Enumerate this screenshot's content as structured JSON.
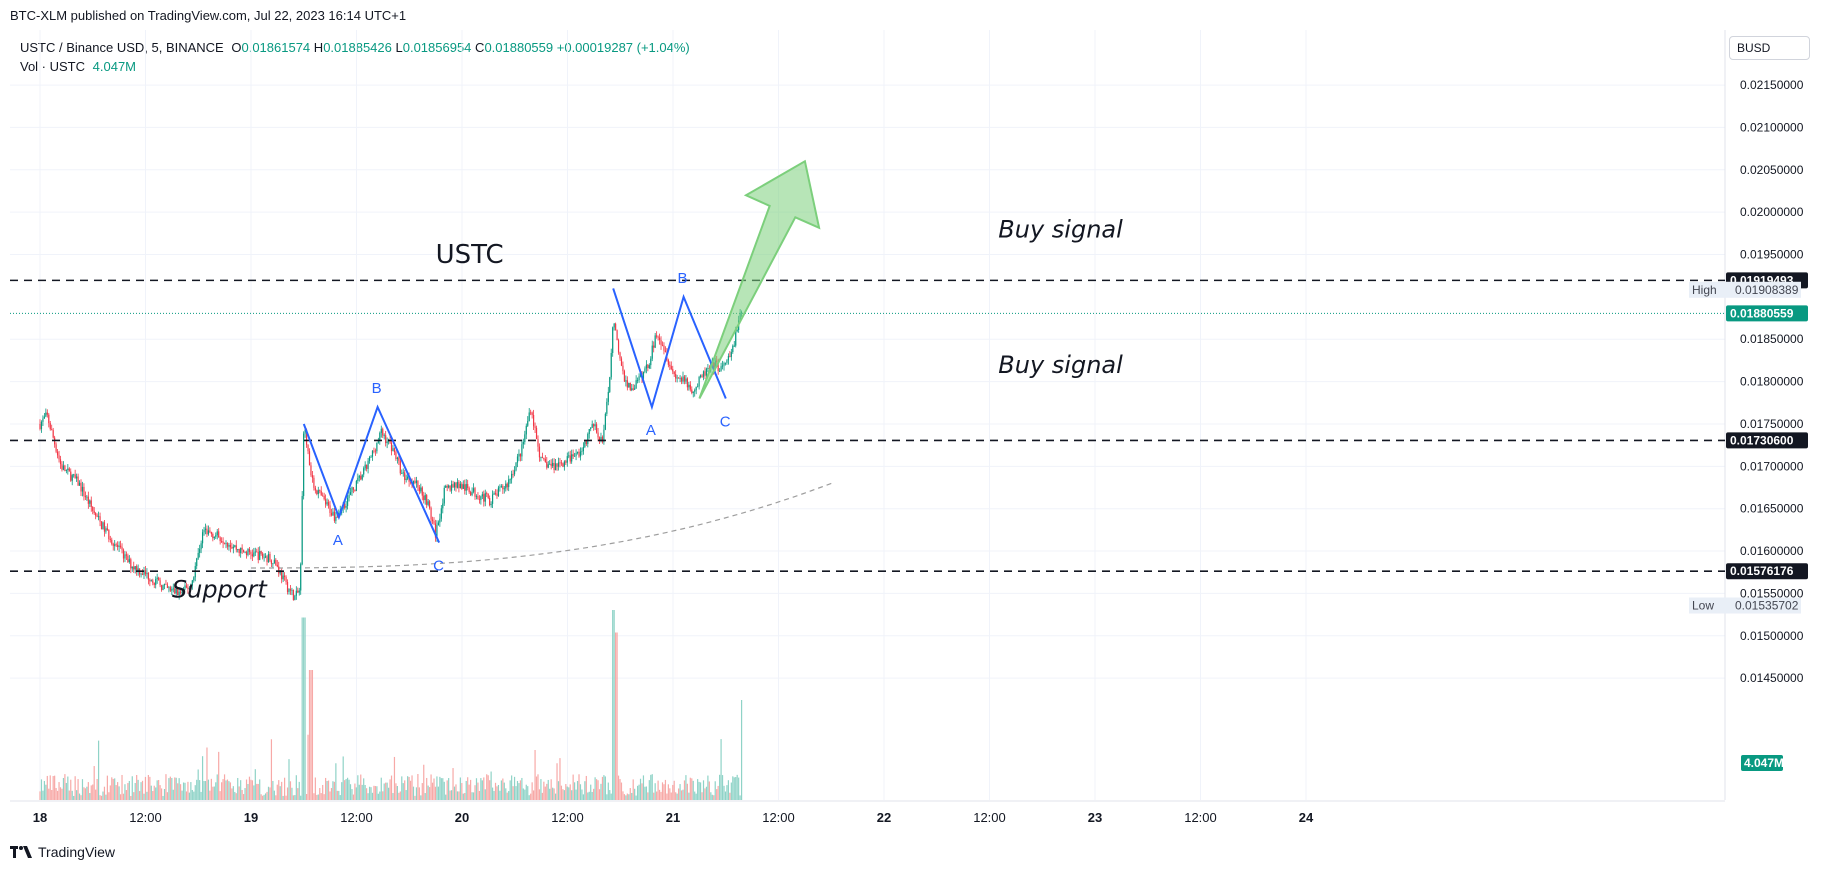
{
  "header": {
    "published": "BTC-XLM published on TradingView.com, Jul 22, 2023 16:14 UTC+1"
  },
  "legend": {
    "symbol": "USTC / Binance USD, 5, BINANCE",
    "o_label": "O",
    "o": "0.01861574",
    "h_label": "H",
    "h": "0.01885426",
    "l_label": "L",
    "l": "0.01856954",
    "c_label": "C",
    "c": "0.01880559",
    "change": "+0.00019287 (+1.04%)",
    "vol_label": "Vol · USTC",
    "vol": "4.047M"
  },
  "currency": "BUSD",
  "footer": {
    "brand": "TradingView"
  },
  "colors": {
    "up": "#089981",
    "down": "#f23645",
    "pattern": "#2962ff",
    "arrow": "#7ccf7c"
  },
  "chart_data": {
    "type": "candlestick",
    "x_ticks": [
      "18",
      "12:00",
      "19",
      "12:00",
      "20",
      "12:00",
      "21",
      "12:00",
      "22",
      "12:00",
      "23",
      "12:00",
      "24"
    ],
    "y_ticks": [
      "0.02150000",
      "0.02100000",
      "0.02050000",
      "0.02000000",
      "0.01950000",
      "0.01850000",
      "0.01800000",
      "0.01750000",
      "0.01700000",
      "0.01650000",
      "0.01600000",
      "0.01550000",
      "0.01500000",
      "0.01450000"
    ],
    "y_values": [
      0.0215,
      0.021,
      0.0205,
      0.02,
      0.0195,
      0.0185,
      0.018,
      0.0175,
      0.017,
      0.0165,
      0.016,
      0.0155,
      0.015,
      0.0145
    ],
    "ylim": [
      0.01436,
      0.02215
    ],
    "price_path": [
      [
        0,
        0.0175
      ],
      [
        0.4,
        0.0176
      ],
      [
        1.2,
        0.017
      ],
      [
        2.2,
        0.0168
      ],
      [
        3.2,
        0.0164
      ],
      [
        4.2,
        0.0161
      ],
      [
        5.1,
        0.01585
      ],
      [
        6.2,
        0.0157
      ],
      [
        7.2,
        0.01555
      ],
      [
        8.0,
        0.0155
      ],
      [
        8.6,
        0.0156
      ],
      [
        9.3,
        0.01625
      ],
      [
        10.4,
        0.01615
      ],
      [
        11.4,
        0.016
      ],
      [
        12.5,
        0.01595
      ],
      [
        13.3,
        0.0159
      ],
      [
        14.0,
        0.0156
      ],
      [
        14.5,
        0.01545
      ],
      [
        14.8,
        0.01555
      ],
      [
        15.0,
        0.0175
      ],
      [
        15.5,
        0.0168
      ],
      [
        16.1,
        0.0166
      ],
      [
        16.8,
        0.0164
      ],
      [
        17.6,
        0.01665
      ],
      [
        18.6,
        0.017
      ],
      [
        19.4,
        0.0174
      ],
      [
        20.1,
        0.0172
      ],
      [
        20.6,
        0.0169
      ],
      [
        21.4,
        0.0168
      ],
      [
        22.0,
        0.0166
      ],
      [
        22.5,
        0.0162
      ],
      [
        23.0,
        0.0167
      ],
      [
        23.6,
        0.0168
      ],
      [
        24.6,
        0.0167
      ],
      [
        25.6,
        0.0166
      ],
      [
        26.6,
        0.0168
      ],
      [
        27.4,
        0.0172
      ],
      [
        27.9,
        0.0177
      ],
      [
        28.5,
        0.01705
      ],
      [
        29.2,
        0.017
      ],
      [
        30.2,
        0.0171
      ],
      [
        30.9,
        0.0172
      ],
      [
        31.4,
        0.0175
      ],
      [
        32.0,
        0.0173
      ],
      [
        32.4,
        0.018
      ],
      [
        32.6,
        0.0188
      ],
      [
        33.1,
        0.0181
      ],
      [
        33.6,
        0.0179
      ],
      [
        34.0,
        0.018
      ],
      [
        34.6,
        0.0182
      ],
      [
        35.1,
        0.0186
      ],
      [
        35.5,
        0.0184
      ],
      [
        36.0,
        0.0181
      ],
      [
        36.6,
        0.018
      ],
      [
        37.2,
        0.0179
      ],
      [
        37.8,
        0.0181
      ],
      [
        38.4,
        0.0182
      ],
      [
        38.8,
        0.01815
      ],
      [
        39.3,
        0.0183
      ],
      [
        39.7,
        0.0187
      ],
      [
        39.95,
        0.01881
      ]
    ],
    "volume_spikes": [
      [
        15.0,
        0.95
      ],
      [
        15.4,
        0.6
      ],
      [
        32.6,
        1.0
      ],
      [
        32.8,
        0.85
      ],
      [
        40.0,
        0.4
      ]
    ],
    "horizontal_levels": [
      {
        "price": 0.01919493,
        "label": "0.01919493"
      },
      {
        "price": 0.017306,
        "label": "0.01730600"
      },
      {
        "price": 0.01576176,
        "label": "0.01576176"
      }
    ],
    "last_price": {
      "price": 0.01880559,
      "label": "0.01880559"
    },
    "high": {
      "label": "High",
      "price": 0.01908389,
      "value": "0.01908389"
    },
    "low": {
      "label": "Low",
      "price": 0.01535702,
      "value": "0.01535702"
    },
    "volume_badge": "4.047M",
    "abc_patterns": [
      {
        "points": [
          [
            15.0,
            0.0175
          ],
          [
            17.0,
            0.0164
          ],
          [
            19.2,
            0.0177
          ],
          [
            22.7,
            0.0161
          ]
        ],
        "labels": [
          "A",
          "B",
          "C"
        ]
      },
      {
        "points": [
          [
            32.6,
            0.0191
          ],
          [
            34.8,
            0.0177
          ],
          [
            36.6,
            0.019
          ],
          [
            39.0,
            0.0178
          ]
        ],
        "labels": [
          "A",
          "B",
          "C"
        ]
      }
    ],
    "annotations": [
      {
        "text": "USTC",
        "x": 22.5,
        "price": 0.0194,
        "style": "normal"
      },
      {
        "text": "Buy signal",
        "x": 54.5,
        "price": 0.0197,
        "style": "italic"
      },
      {
        "text": "Buy signal",
        "x": 54.5,
        "price": 0.0181,
        "style": "italic"
      },
      {
        "text": "Support",
        "x": 7.5,
        "price": 0.01545,
        "style": "italic"
      }
    ],
    "arrow": {
      "from": [
        37.5,
        0.0178
      ],
      "to": [
        43.5,
        0.0206
      ]
    }
  }
}
